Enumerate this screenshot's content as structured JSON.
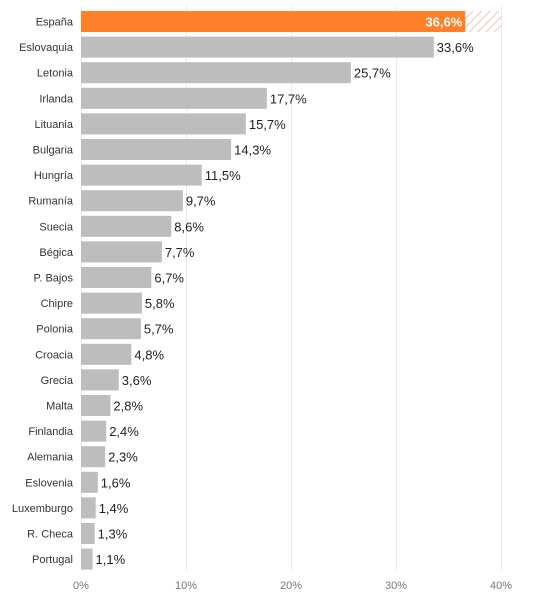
{
  "chart_data": {
    "type": "bar",
    "orientation": "horizontal",
    "title": "",
    "xlabel": "",
    "ylabel": "",
    "xlim": [
      0,
      40
    ],
    "grid": true,
    "x_ticks": [
      "0%",
      "10%",
      "20%",
      "30%",
      "40%"
    ],
    "x_tick_values": [
      0,
      10,
      20,
      30,
      40
    ],
    "highlight_category": "España",
    "colors": {
      "highlight": "#ff7f2a",
      "default": "#bdbdbd",
      "hatch": "#f4b0a8"
    },
    "categories": [
      "España",
      "Eslovaquia",
      "Letonia",
      "Irlanda",
      "Lituania",
      "Bulgaria",
      "Hungría",
      "Rumanía",
      "Suecia",
      "Bégica",
      "P. Bajos",
      "Chipre",
      "Polonia",
      "Croacia",
      "Grecia",
      "Malta",
      "Finlandia",
      "Alemania",
      "Eslovenia",
      "Luxemburgo",
      "R. Checa",
      "Portugal"
    ],
    "values": [
      36.6,
      33.6,
      25.7,
      17.7,
      15.7,
      14.3,
      11.5,
      9.7,
      8.6,
      7.7,
      6.7,
      5.8,
      5.7,
      4.8,
      3.6,
      2.8,
      2.4,
      2.3,
      1.6,
      1.4,
      1.3,
      1.1
    ],
    "value_labels": [
      "36,6%",
      "33,6%",
      "25,7%",
      "17,7%",
      "15,7%",
      "14,3%",
      "11,5%",
      "9,7%",
      "8,6%",
      "7,7%",
      "6,7%",
      "5,8%",
      "5,7%",
      "4,8%",
      "3,6%",
      "2,8%",
      "2,4%",
      "2,3%",
      "1,6%",
      "1,4%",
      "1,3%",
      "1,1%"
    ]
  }
}
